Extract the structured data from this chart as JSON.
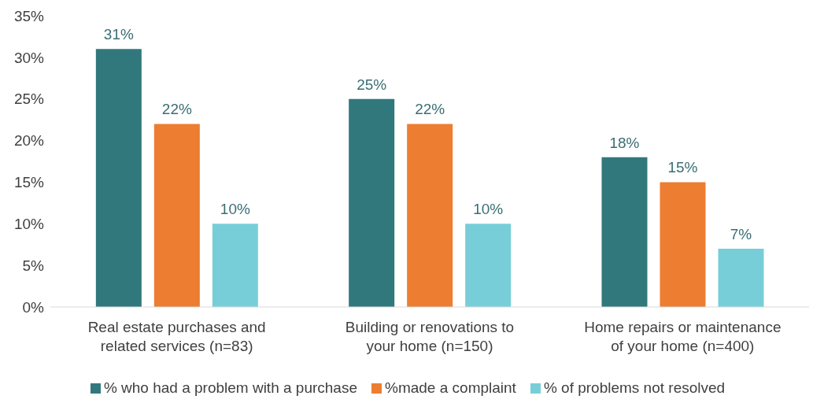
{
  "chart_data": {
    "type": "bar",
    "categories": [
      "Real estate purchases and related services (n=83)",
      "Building or renovations to your home (n=150)",
      "Home repairs or maintenance of your home (n=400)"
    ],
    "series": [
      {
        "name": "% who had a problem with a purchase",
        "color": "#31787d",
        "values": [
          31,
          25,
          18
        ],
        "value_labels": [
          "31%",
          "25%",
          "18%"
        ]
      },
      {
        "name": "%made a complaint",
        "color": "#ed7d31",
        "values": [
          22,
          22,
          15
        ],
        "value_labels": [
          "22%",
          "22%",
          "15%"
        ]
      },
      {
        "name": "% of problems not resolved",
        "color": "#77ced8",
        "values": [
          10,
          10,
          7
        ],
        "value_labels": [
          "10%",
          "10%",
          "7%"
        ]
      }
    ],
    "ylim": [
      0,
      35
    ],
    "yticks": [
      {
        "value": 0,
        "label": "0%"
      },
      {
        "value": 5,
        "label": "5%"
      },
      {
        "value": 10,
        "label": "10%"
      },
      {
        "value": 15,
        "label": "15%"
      },
      {
        "value": 20,
        "label": "20%"
      },
      {
        "value": 25,
        "label": "25%"
      },
      {
        "value": 30,
        "label": "30%"
      },
      {
        "value": 35,
        "label": "35%"
      }
    ],
    "grid": false,
    "legend": "bottom"
  }
}
